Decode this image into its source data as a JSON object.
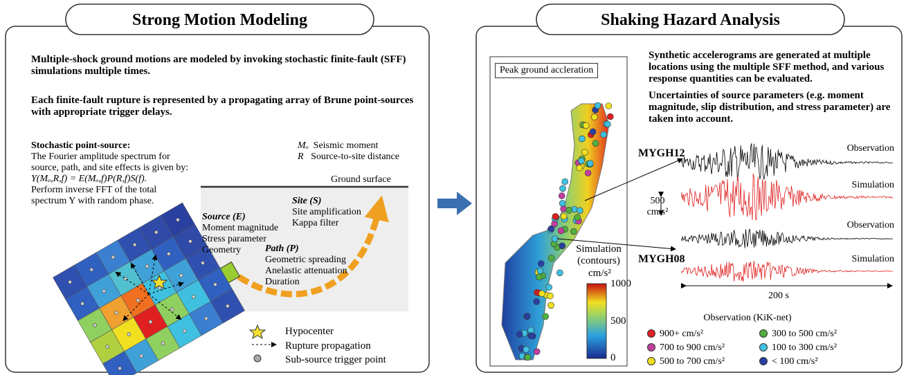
{
  "left": {
    "title": "Strong Motion Modeling",
    "paragraphs": [
      "Multiple-shock ground motions are modeled by invoking stochastic finite-fault (SFF) simulations multiple times.",
      "Each finite-fault rupture is represented by a propagating array of Brune point-sources with appropriate trigger delays."
    ],
    "point_source": {
      "heading": "Stochastic point-source:",
      "lines": [
        "The Fourier amplitude spectrum for",
        "source, path, and site effects is given by:",
        "Y(Mₒ,R,f) = E(Mₒ,f)P(R,f)S(f).",
        "Perform inverse FFT of the total",
        "spectrum Y with random phase."
      ]
    },
    "symbols": [
      {
        "symbol": "Mₒ",
        "label": "Seismic moment"
      },
      {
        "symbol": "R",
        "label": "Source-to-site distance"
      }
    ],
    "ground_surface": "Ground surface",
    "site": {
      "title": "Site (S)",
      "items": [
        "Site amplification",
        "Kappa filter"
      ]
    },
    "source": {
      "title": "Source (E)",
      "items": [
        "Moment magnitude",
        "Stress parameter",
        "Geometry"
      ]
    },
    "path": {
      "title": "Path (P)",
      "items": [
        "Geometric spreading",
        "Anelastic attenuation",
        "Duration"
      ]
    },
    "legend": [
      "Hypocenter",
      "Rupture propagation",
      "Sub-source trigger point"
    ]
  },
  "right": {
    "title": "Shaking Hazard Analysis",
    "map": {
      "label": "Peak ground accleration",
      "contour_label": [
        "Simulation",
        "(contours)"
      ],
      "unit": "cm/s²",
      "colorbar_ticks": [
        1000,
        500,
        0
      ]
    },
    "paragraphs": [
      "Synthetic accelerograms are generated at multiple locations using the multiple SFF method, and various response quantities can be evaluated.",
      "Uncertainties of source parameters (e.g. moment magnitude, slip distribution, and stress parameter) are taken into account."
    ],
    "stations": [
      "MYGH12",
      "MYGH08"
    ],
    "traces": [
      "Observation",
      "Simulation",
      "Observation",
      "Simulation"
    ],
    "scale": [
      "500",
      "cm/s²"
    ],
    "time_scale": "200 s",
    "legend": {
      "title": "Observation (KiK-net)",
      "items": [
        "900+ cm/s²",
        "700 to 900 cm/s²",
        "500 to 700 cm/s²",
        "300 to 500 cm/s²",
        "100 to 300 cm/s²",
        "< 100 cm/s²"
      ]
    }
  }
}
